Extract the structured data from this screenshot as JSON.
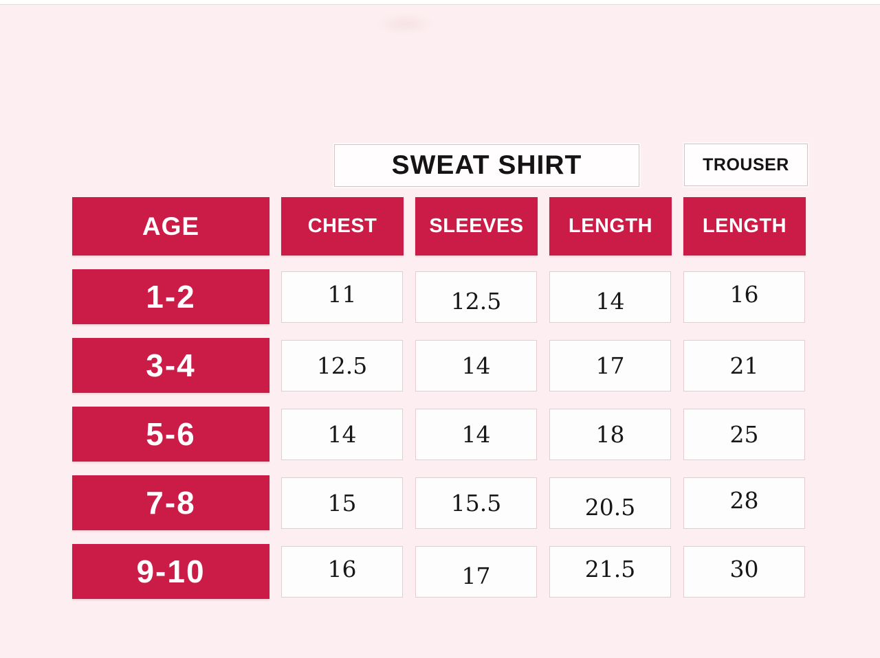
{
  "colors": {
    "accent_red": "#cb1c48",
    "background_pink": "#fdeff1",
    "cell_border_pink": "#e8cad1",
    "title_border_gray": "#d2c4c7",
    "text_dark": "#161616",
    "header_text_white": "#ffffff"
  },
  "titles": {
    "sweat_shirt": "SWEAT SHIRT",
    "trouser": "TROUSER"
  },
  "chart_data": {
    "type": "table",
    "title": "SWEAT SHIRT / TROUSER size chart",
    "group_headers": [
      "SWEAT SHIRT",
      "TROUSER"
    ],
    "columns": [
      "AGE",
      "CHEST",
      "SLEEVES",
      "LENGTH",
      "LENGTH"
    ],
    "rows": [
      [
        "1-2",
        11,
        12.5,
        14,
        16
      ],
      [
        "3-4",
        12.5,
        14,
        17,
        21
      ],
      [
        "5-6",
        14,
        14,
        18,
        25
      ],
      [
        "7-8",
        15,
        15.5,
        20.5,
        28
      ],
      [
        "9-10",
        16,
        17,
        21.5,
        30
      ]
    ]
  },
  "table": {
    "age_header": "AGE",
    "columns": [
      "CHEST",
      "SLEEVES",
      "LENGTH",
      "LENGTH"
    ],
    "rows": [
      {
        "age": "1-2",
        "values": [
          "11",
          "12.5",
          "14",
          "16"
        ]
      },
      {
        "age": "3-4",
        "values": [
          "12.5",
          "14",
          "17",
          "21"
        ]
      },
      {
        "age": "5-6",
        "values": [
          "14",
          "14",
          "18",
          "25"
        ]
      },
      {
        "age": "7-8",
        "values": [
          "15",
          "15.5",
          "20.5",
          "28"
        ]
      },
      {
        "age": "9-10",
        "values": [
          "16",
          "17",
          "21.5",
          "30"
        ]
      }
    ]
  }
}
